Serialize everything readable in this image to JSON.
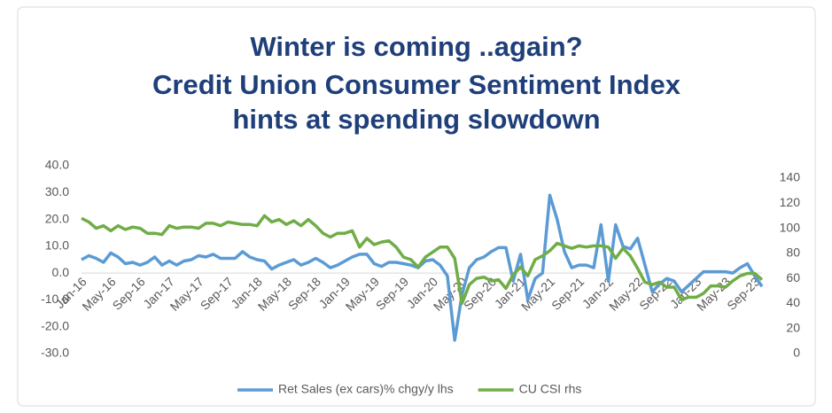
{
  "chart_data": {
    "type": "line",
    "title": [
      "Winter is coming ..again?",
      "Credit Union Consumer Sentiment Index",
      "hints at spending slowdown"
    ],
    "categories": [
      "Jan-16",
      null,
      null,
      null,
      "May-16",
      null,
      null,
      null,
      "Sep-16",
      null,
      null,
      null,
      "Jan-17",
      null,
      null,
      null,
      "May-17",
      null,
      null,
      null,
      "Sep-17",
      null,
      null,
      null,
      "Jan-18",
      null,
      null,
      null,
      "May-18",
      null,
      null,
      null,
      "Sep-18",
      null,
      null,
      null,
      "Jan-19",
      null,
      null,
      null,
      "May-19",
      null,
      null,
      null,
      "Sep-19",
      null,
      null,
      null,
      "Jan-20",
      null,
      null,
      null,
      "May-20",
      null,
      null,
      null,
      "Sep-20",
      null,
      null,
      null,
      "Jan-21",
      null,
      null,
      null,
      "May-21",
      null,
      null,
      null,
      "Sep-21",
      null,
      null,
      null,
      "Jan-22",
      null,
      null,
      null,
      "May-22",
      null,
      null,
      null,
      "Sep-22",
      null,
      null,
      null,
      "Jan-23",
      null,
      null,
      null,
      "May-23",
      null,
      null,
      null,
      "Sep-23",
      null
    ],
    "series": [
      {
        "name": "Ret Sales (ex cars)% chgy/y lhs",
        "color": "#5b9bd5",
        "axis": "y",
        "values": [
          5,
          6.5,
          5.5,
          4,
          7.5,
          6,
          3.5,
          4,
          3,
          4,
          6,
          3,
          4.5,
          3,
          4.5,
          5,
          6.5,
          6,
          7,
          5.5,
          5.5,
          5.5,
          8,
          6,
          5,
          4.5,
          1.5,
          3,
          4,
          5,
          3,
          4,
          5.5,
          4,
          2,
          3,
          4.5,
          6,
          7,
          7,
          3.5,
          2.5,
          4,
          4,
          3.5,
          3,
          2,
          4.5,
          5,
          3,
          -1,
          -25,
          -8,
          2,
          5,
          6,
          8,
          9.5,
          9.5,
          -3,
          7,
          -10,
          -2,
          0,
          29,
          20,
          8,
          2,
          3,
          3,
          2,
          18,
          -3,
          18,
          10,
          9,
          13,
          3,
          -7,
          -4,
          -2,
          -3,
          -7,
          -4.5,
          -2,
          0.5,
          0.5,
          0.5,
          0.5,
          0,
          2,
          3.5,
          -1,
          -5
        ]
      },
      {
        "name": "CU CSI rhs",
        "color": "#70ad47",
        "axis": "y2",
        "values": [
          108,
          105,
          100,
          102,
          98,
          102,
          99,
          101,
          100,
          96,
          96,
          95,
          102,
          100,
          101,
          101,
          100,
          104,
          104,
          102,
          105,
          104,
          103,
          103,
          102,
          110,
          105,
          107,
          103,
          106,
          102,
          107,
          102,
          96,
          93,
          96,
          96,
          98,
          85,
          92,
          87,
          89,
          90,
          85,
          77,
          75,
          69,
          77,
          81,
          85,
          85,
          76,
          40,
          55,
          60,
          61,
          58,
          59,
          52,
          63,
          69,
          62,
          75,
          78,
          82,
          88,
          86,
          84,
          86,
          85,
          86,
          86,
          85,
          76,
          84,
          78,
          68,
          57,
          55,
          57,
          53,
          53,
          43,
          45,
          45,
          48,
          54,
          54,
          53,
          58,
          62,
          64,
          64,
          59
        ]
      }
    ],
    "ylim": [
      -30,
      40
    ],
    "yticks": [
      {
        "value": -30,
        "label": "-30.0"
      },
      {
        "value": -20,
        "label": "-20.0"
      },
      {
        "value": -10,
        "label": "-10.0"
      },
      {
        "value": 0,
        "label": "0.0"
      },
      {
        "value": 10,
        "label": "10.0"
      },
      {
        "value": 20,
        "label": "20.0"
      },
      {
        "value": 30,
        "label": "30.0"
      },
      {
        "value": 40,
        "label": "40.0"
      }
    ],
    "y2lim": [
      0,
      140
    ],
    "y2ticks": [
      0,
      20,
      40,
      60,
      80,
      100,
      120,
      140
    ],
    "grid": false,
    "legend": "bottom"
  }
}
